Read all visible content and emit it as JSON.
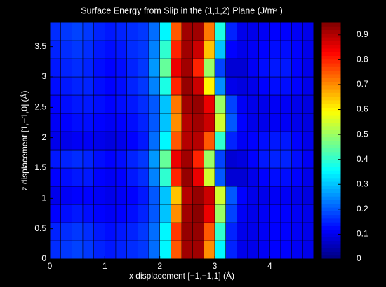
{
  "chart_data": {
    "type": "heatmap",
    "title": "Surface Energy from Slip in the (1,1,2) Plane (J/m² )",
    "x_label": "x displacement [−1,−1,1] (Å)",
    "y_label": "z displacement [1,−1,0] (Å)",
    "colormap": "jet",
    "xlim": [
      0,
      4.8
    ],
    "ylim": [
      0,
      3.9
    ],
    "xticks": [
      0,
      1,
      2,
      3,
      4
    ],
    "yticks": [
      0,
      0.5,
      1,
      1.5,
      2,
      2.5,
      3,
      3.5
    ],
    "clim": [
      0,
      0.95
    ],
    "cticks": [
      0,
      0.1,
      0.2,
      0.3,
      0.4,
      0.5,
      0.6,
      0.7,
      0.8,
      0.9
    ],
    "values": [
      [
        0.16,
        0.17,
        0.18,
        0.17,
        0.15,
        0.14,
        0.15,
        0.16,
        0.17,
        0.22,
        0.35,
        0.75,
        0.92,
        0.92,
        0.7,
        0.35,
        0.15,
        0.1,
        0.1,
        0.11,
        0.12,
        0.12,
        0.11,
        0.1
      ],
      [
        0.15,
        0.16,
        0.17,
        0.16,
        0.14,
        0.13,
        0.14,
        0.15,
        0.17,
        0.22,
        0.35,
        0.78,
        0.93,
        0.93,
        0.75,
        0.4,
        0.15,
        0.1,
        0.1,
        0.11,
        0.12,
        0.12,
        0.11,
        0.1
      ],
      [
        0.12,
        0.13,
        0.14,
        0.13,
        0.12,
        0.11,
        0.12,
        0.13,
        0.15,
        0.2,
        0.3,
        0.7,
        0.92,
        0.94,
        0.85,
        0.5,
        0.18,
        0.11,
        0.1,
        0.11,
        0.12,
        0.12,
        0.11,
        0.1
      ],
      [
        0.1,
        0.11,
        0.12,
        0.12,
        0.11,
        0.1,
        0.11,
        0.12,
        0.14,
        0.2,
        0.3,
        0.65,
        0.9,
        0.93,
        0.88,
        0.55,
        0.2,
        0.12,
        0.1,
        0.1,
        0.11,
        0.11,
        0.1,
        0.09
      ],
      [
        0.12,
        0.13,
        0.14,
        0.14,
        0.12,
        0.11,
        0.12,
        0.14,
        0.16,
        0.24,
        0.4,
        0.8,
        0.93,
        0.85,
        0.55,
        0.2,
        0.08,
        0.08,
        0.1,
        0.12,
        0.13,
        0.13,
        0.12,
        0.1
      ],
      [
        0.14,
        0.15,
        0.16,
        0.15,
        0.13,
        0.12,
        0.13,
        0.15,
        0.17,
        0.26,
        0.45,
        0.85,
        0.92,
        0.8,
        0.5,
        0.18,
        0.08,
        0.09,
        0.12,
        0.14,
        0.15,
        0.15,
        0.13,
        0.11
      ],
      [
        0.1,
        0.1,
        0.11,
        0.11,
        0.1,
        0.09,
        0.1,
        0.12,
        0.14,
        0.22,
        0.35,
        0.75,
        0.9,
        0.9,
        0.75,
        0.4,
        0.15,
        0.11,
        0.12,
        0.13,
        0.14,
        0.14,
        0.12,
        0.1
      ],
      [
        0.11,
        0.12,
        0.13,
        0.13,
        0.12,
        0.11,
        0.12,
        0.13,
        0.15,
        0.2,
        0.3,
        0.7,
        0.9,
        0.92,
        0.88,
        0.55,
        0.2,
        0.12,
        0.1,
        0.1,
        0.11,
        0.11,
        0.1,
        0.09
      ],
      [
        0.12,
        0.13,
        0.14,
        0.14,
        0.13,
        0.12,
        0.13,
        0.14,
        0.16,
        0.2,
        0.3,
        0.72,
        0.92,
        0.93,
        0.85,
        0.5,
        0.18,
        0.11,
        0.1,
        0.1,
        0.11,
        0.11,
        0.1,
        0.09
      ],
      [
        0.13,
        0.14,
        0.15,
        0.15,
        0.13,
        0.12,
        0.13,
        0.15,
        0.17,
        0.24,
        0.38,
        0.8,
        0.93,
        0.88,
        0.6,
        0.25,
        0.1,
        0.09,
        0.1,
        0.12,
        0.13,
        0.13,
        0.12,
        0.1
      ],
      [
        0.14,
        0.15,
        0.16,
        0.15,
        0.13,
        0.12,
        0.13,
        0.15,
        0.17,
        0.26,
        0.45,
        0.85,
        0.92,
        0.8,
        0.5,
        0.18,
        0.08,
        0.08,
        0.11,
        0.13,
        0.14,
        0.14,
        0.12,
        0.1
      ],
      [
        0.15,
        0.16,
        0.17,
        0.16,
        0.14,
        0.13,
        0.14,
        0.16,
        0.17,
        0.24,
        0.4,
        0.8,
        0.92,
        0.88,
        0.65,
        0.3,
        0.12,
        0.1,
        0.11,
        0.12,
        0.13,
        0.13,
        0.12,
        0.1
      ],
      [
        0.16,
        0.17,
        0.18,
        0.17,
        0.15,
        0.14,
        0.15,
        0.16,
        0.17,
        0.22,
        0.35,
        0.75,
        0.92,
        0.92,
        0.72,
        0.38,
        0.15,
        0.1,
        0.1,
        0.11,
        0.12,
        0.12,
        0.11,
        0.1
      ]
    ]
  }
}
